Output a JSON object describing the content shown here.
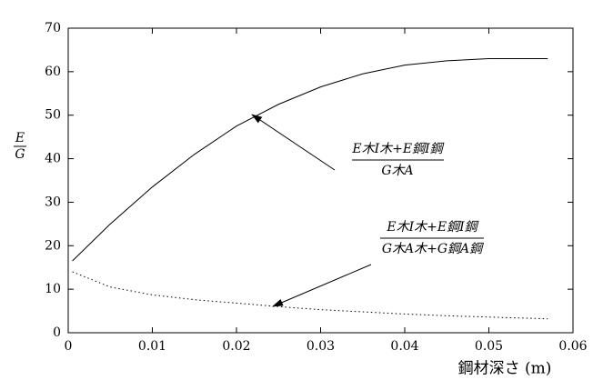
{
  "chart_data": {
    "type": "line",
    "y_label": {
      "numerator": "E",
      "denominator": "G"
    },
    "x_label": "鋼材深さ (m)",
    "x": [
      0.0005,
      0.005,
      0.01,
      0.015,
      0.02,
      0.025,
      0.03,
      0.035,
      0.04,
      0.045,
      0.05,
      0.057
    ],
    "series": [
      {
        "color": "#000000",
        "linestyle": "solid",
        "values": [
          16.5,
          25,
          33.5,
          41,
          47.5,
          52.5,
          56.5,
          59.5,
          61.5,
          62.5,
          63,
          63
        ]
      },
      {
        "color": "#000000",
        "linestyle": "dotted",
        "values": [
          14,
          10.5,
          8.7,
          7.6,
          6.8,
          6,
          5.3,
          4.8,
          4.3,
          3.9,
          3.6,
          3.2
        ]
      }
    ],
    "annotations": [
      {
        "numerator": "E木I木+E鋼I鋼",
        "denominator": "G木A"
      },
      {
        "numerator": "E木I木+E鋼I鋼",
        "denominator": "G木A木+G鋼A鋼"
      }
    ],
    "xlim": [
      0,
      0.06
    ],
    "xticks": [
      0,
      0.01,
      0.02,
      0.03,
      0.04,
      0.05,
      0.06
    ],
    "ylim": [
      0,
      70
    ],
    "yticks": [
      0,
      10,
      20,
      30,
      40,
      50,
      60,
      70
    ]
  }
}
